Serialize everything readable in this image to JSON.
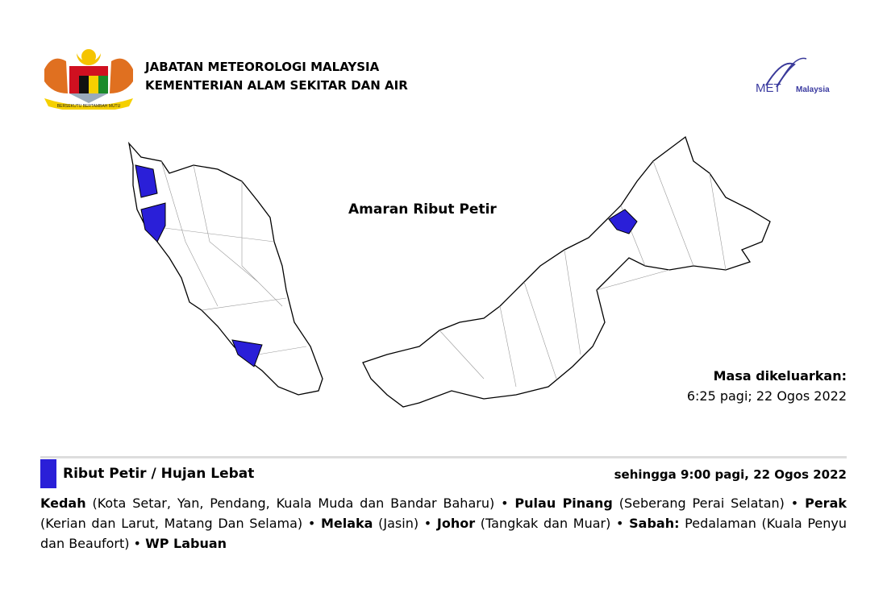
{
  "header": {
    "org_line1": "JABATAN METEOROLOGI MALAYSIA",
    "org_line2": "KEMENTERIAN ALAM SEKITAR DAN AIR",
    "crest_motto": "BERSEKUTU BERTAMBAH MUTU",
    "logo_text_met": "MET",
    "logo_text_malaysia": "Malaysia"
  },
  "map": {
    "title": "Amaran Ribut Petir",
    "highlight_color": "#2a1fd8",
    "issued_label": "Masa dikeluarkan:",
    "issued_value": "6:25 pagi; 22 Ogos 2022"
  },
  "warning": {
    "title": "Ribut Petir / Hujan Lebat",
    "until": "sehingga 9:00 pagi, 22 Ogos 2022",
    "areas": [
      {
        "state": "Kedah",
        "detail": " (Kota Setar, Yan, Pendang, Kuala Muda dan Bandar Baharu) • "
      },
      {
        "state": "Pulau Pinang",
        "detail": " (Seberang Perai Selatan) • "
      },
      {
        "state": "Perak",
        "detail": " (Kerian dan Larut, Matang Dan Selama) • "
      },
      {
        "state": "Melaka",
        "detail": " (Jasin)  • "
      },
      {
        "state": "Johor",
        "detail": " (Tangkak dan Muar) • "
      },
      {
        "state": "Sabah:",
        "detail": " Pedalaman (Kuala Penyu dan Beaufort) • "
      },
      {
        "state": "WP Labuan",
        "detail": ""
      }
    ]
  }
}
